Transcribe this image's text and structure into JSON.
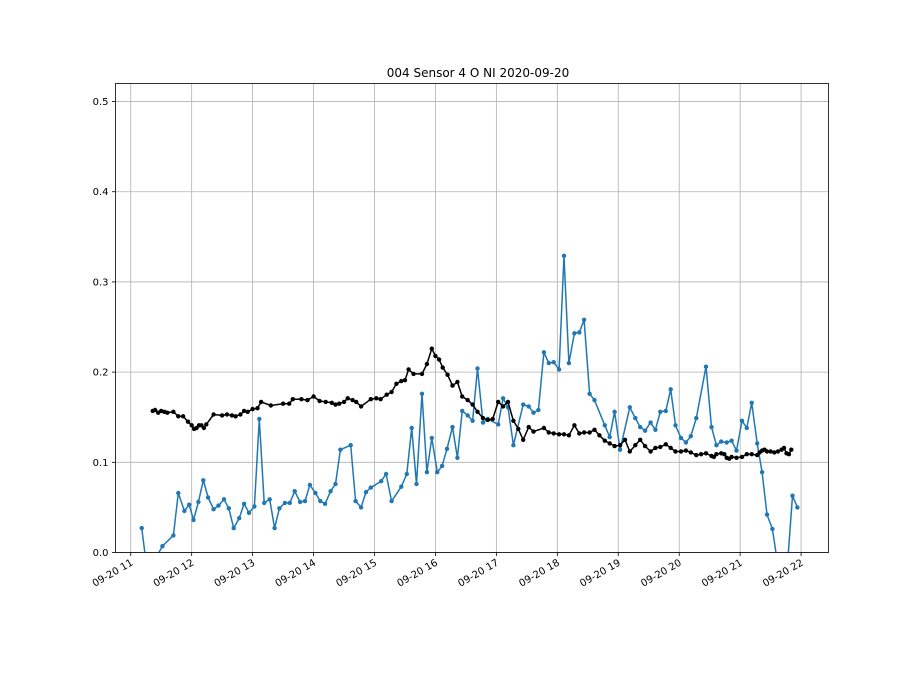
{
  "chart_data": {
    "type": "line",
    "title": "004 Sensor 4 O NI 2020-09-20",
    "xlabel": "",
    "ylabel": "",
    "x_unit": "hours (2020-09-20)",
    "xlim": [
      10.75,
      22.45
    ],
    "ylim": [
      0.0,
      0.52
    ],
    "x_tick_labels": [
      "09-20 11",
      "09-20 12",
      "09-20 13",
      "09-20 14",
      "09-20 15",
      "09-20 16",
      "09-20 17",
      "09-20 18",
      "09-20 19",
      "09-20 20",
      "09-20 21",
      "09-20 22"
    ],
    "x_tick_values": [
      11,
      12,
      13,
      14,
      15,
      16,
      17,
      18,
      19,
      20,
      21,
      22
    ],
    "y_tick_labels": [
      "0.0",
      "0.1",
      "0.2",
      "0.3",
      "0.4",
      "0.5"
    ],
    "y_tick_values": [
      0.0,
      0.1,
      0.2,
      0.3,
      0.4,
      0.5
    ],
    "grid": true,
    "series": [
      {
        "color": "#1f77b4",
        "points": [
          [
            11.18,
            0.027
          ],
          [
            11.25,
            -0.01
          ],
          [
            11.38,
            -0.01
          ],
          [
            11.52,
            0.007
          ],
          [
            11.7,
            0.019
          ],
          [
            11.78,
            0.066
          ],
          [
            11.88,
            0.046
          ],
          [
            11.96,
            0.053
          ],
          [
            12.03,
            0.036
          ],
          [
            12.11,
            0.056
          ],
          [
            12.19,
            0.08
          ],
          [
            12.27,
            0.061
          ],
          [
            12.36,
            0.048
          ],
          [
            12.44,
            0.052
          ],
          [
            12.53,
            0.059
          ],
          [
            12.61,
            0.049
          ],
          [
            12.69,
            0.027
          ],
          [
            12.78,
            0.038
          ],
          [
            12.86,
            0.054
          ],
          [
            12.94,
            0.044
          ],
          [
            13.03,
            0.051
          ],
          [
            13.11,
            0.148
          ],
          [
            13.19,
            0.055
          ],
          [
            13.28,
            0.059
          ],
          [
            13.36,
            0.027
          ],
          [
            13.44,
            0.049
          ],
          [
            13.53,
            0.055
          ],
          [
            13.61,
            0.055
          ],
          [
            13.69,
            0.068
          ],
          [
            13.78,
            0.056
          ],
          [
            13.86,
            0.057
          ],
          [
            13.94,
            0.075
          ],
          [
            14.03,
            0.066
          ],
          [
            14.11,
            0.057
          ],
          [
            14.19,
            0.054
          ],
          [
            14.28,
            0.068
          ],
          [
            14.36,
            0.076
          ],
          [
            14.44,
            0.114
          ],
          [
            14.61,
            0.119
          ],
          [
            14.69,
            0.057
          ],
          [
            14.78,
            0.05
          ],
          [
            14.86,
            0.067
          ],
          [
            14.94,
            0.072
          ],
          [
            15.11,
            0.079
          ],
          [
            15.19,
            0.087
          ],
          [
            15.28,
            0.057
          ],
          [
            15.44,
            0.073
          ],
          [
            15.53,
            0.087
          ],
          [
            15.61,
            0.138
          ],
          [
            15.69,
            0.076
          ],
          [
            15.78,
            0.176
          ],
          [
            15.86,
            0.089
          ],
          [
            15.94,
            0.127
          ],
          [
            16.03,
            0.089
          ],
          [
            16.11,
            0.096
          ],
          [
            16.19,
            0.115
          ],
          [
            16.28,
            0.139
          ],
          [
            16.36,
            0.105
          ],
          [
            16.44,
            0.157
          ],
          [
            16.53,
            0.152
          ],
          [
            16.61,
            0.146
          ],
          [
            16.69,
            0.204
          ],
          [
            16.78,
            0.144
          ],
          [
            16.86,
            0.148
          ],
          [
            17.03,
            0.142
          ],
          [
            17.11,
            0.171
          ],
          [
            17.19,
            0.161
          ],
          [
            17.28,
            0.119
          ],
          [
            17.44,
            0.164
          ],
          [
            17.53,
            0.162
          ],
          [
            17.61,
            0.155
          ],
          [
            17.69,
            0.158
          ],
          [
            17.78,
            0.222
          ],
          [
            17.86,
            0.21
          ],
          [
            17.94,
            0.211
          ],
          [
            18.03,
            0.203
          ],
          [
            18.11,
            0.329
          ],
          [
            18.19,
            0.21
          ],
          [
            18.28,
            0.243
          ],
          [
            18.36,
            0.244
          ],
          [
            18.44,
            0.258
          ],
          [
            18.53,
            0.176
          ],
          [
            18.61,
            0.169
          ],
          [
            18.78,
            0.141
          ],
          [
            18.86,
            0.128
          ],
          [
            18.94,
            0.156
          ],
          [
            19.03,
            0.114
          ],
          [
            19.19,
            0.161
          ],
          [
            19.28,
            0.149
          ],
          [
            19.36,
            0.139
          ],
          [
            19.44,
            0.135
          ],
          [
            19.53,
            0.144
          ],
          [
            19.61,
            0.136
          ],
          [
            19.69,
            0.156
          ],
          [
            19.78,
            0.157
          ],
          [
            19.86,
            0.181
          ],
          [
            19.94,
            0.141
          ],
          [
            20.03,
            0.127
          ],
          [
            20.11,
            0.122
          ],
          [
            20.19,
            0.129
          ],
          [
            20.28,
            0.149
          ],
          [
            20.44,
            0.206
          ],
          [
            20.53,
            0.139
          ],
          [
            20.61,
            0.119
          ],
          [
            20.69,
            0.123
          ],
          [
            20.78,
            0.122
          ],
          [
            20.86,
            0.124
          ],
          [
            20.94,
            0.113
          ],
          [
            21.03,
            0.146
          ],
          [
            21.11,
            0.138
          ],
          [
            21.19,
            0.166
          ],
          [
            21.28,
            0.121
          ],
          [
            21.36,
            0.089
          ],
          [
            21.44,
            0.042
          ],
          [
            21.53,
            0.026
          ],
          [
            21.61,
            -0.01
          ],
          [
            21.78,
            -0.01
          ],
          [
            21.86,
            0.063
          ],
          [
            21.94,
            0.05
          ]
        ]
      },
      {
        "color": "#000000",
        "points": [
          [
            11.36,
            0.157
          ],
          [
            11.4,
            0.158
          ],
          [
            11.45,
            0.155
          ],
          [
            11.5,
            0.157
          ],
          [
            11.55,
            0.156
          ],
          [
            11.6,
            0.155
          ],
          [
            11.7,
            0.156
          ],
          [
            11.78,
            0.151
          ],
          [
            11.86,
            0.151
          ],
          [
            11.94,
            0.145
          ],
          [
            12.0,
            0.141
          ],
          [
            12.04,
            0.137
          ],
          [
            12.08,
            0.138
          ],
          [
            12.12,
            0.141
          ],
          [
            12.16,
            0.141
          ],
          [
            12.2,
            0.138
          ],
          [
            12.24,
            0.142
          ],
          [
            12.36,
            0.153
          ],
          [
            12.5,
            0.152
          ],
          [
            12.58,
            0.153
          ],
          [
            12.66,
            0.152
          ],
          [
            12.72,
            0.151
          ],
          [
            12.8,
            0.153
          ],
          [
            12.86,
            0.157
          ],
          [
            12.92,
            0.156
          ],
          [
            13.0,
            0.159
          ],
          [
            13.08,
            0.16
          ],
          [
            13.14,
            0.167
          ],
          [
            13.3,
            0.163
          ],
          [
            13.5,
            0.165
          ],
          [
            13.6,
            0.165
          ],
          [
            13.66,
            0.17
          ],
          [
            13.8,
            0.17
          ],
          [
            13.9,
            0.169
          ],
          [
            14.0,
            0.173
          ],
          [
            14.1,
            0.168
          ],
          [
            14.2,
            0.167
          ],
          [
            14.3,
            0.166
          ],
          [
            14.36,
            0.164
          ],
          [
            14.42,
            0.165
          ],
          [
            14.5,
            0.167
          ],
          [
            14.56,
            0.171
          ],
          [
            14.64,
            0.169
          ],
          [
            14.7,
            0.167
          ],
          [
            14.78,
            0.162
          ],
          [
            14.94,
            0.17
          ],
          [
            15.03,
            0.171
          ],
          [
            15.1,
            0.17
          ],
          [
            15.2,
            0.175
          ],
          [
            15.28,
            0.178
          ],
          [
            15.36,
            0.187
          ],
          [
            15.44,
            0.19
          ],
          [
            15.5,
            0.191
          ],
          [
            15.56,
            0.203
          ],
          [
            15.64,
            0.198
          ],
          [
            15.78,
            0.198
          ],
          [
            15.86,
            0.209
          ],
          [
            15.94,
            0.226
          ],
          [
            16.0,
            0.218
          ],
          [
            16.06,
            0.214
          ],
          [
            16.12,
            0.205
          ],
          [
            16.2,
            0.197
          ],
          [
            16.28,
            0.185
          ],
          [
            16.36,
            0.189
          ],
          [
            16.44,
            0.173
          ],
          [
            16.53,
            0.169
          ],
          [
            16.61,
            0.164
          ],
          [
            16.69,
            0.156
          ],
          [
            16.78,
            0.149
          ],
          [
            16.86,
            0.147
          ],
          [
            16.94,
            0.148
          ],
          [
            17.03,
            0.167
          ],
          [
            17.11,
            0.162
          ],
          [
            17.19,
            0.167
          ],
          [
            17.28,
            0.146
          ],
          [
            17.36,
            0.137
          ],
          [
            17.44,
            0.125
          ],
          [
            17.53,
            0.139
          ],
          [
            17.61,
            0.134
          ],
          [
            17.78,
            0.138
          ],
          [
            17.86,
            0.133
          ],
          [
            17.94,
            0.132
          ],
          [
            18.03,
            0.131
          ],
          [
            18.11,
            0.131
          ],
          [
            18.19,
            0.13
          ],
          [
            18.28,
            0.141
          ],
          [
            18.36,
            0.132
          ],
          [
            18.44,
            0.133
          ],
          [
            18.53,
            0.133
          ],
          [
            18.61,
            0.136
          ],
          [
            18.69,
            0.13
          ],
          [
            18.78,
            0.124
          ],
          [
            18.86,
            0.121
          ],
          [
            18.94,
            0.118
          ],
          [
            19.03,
            0.119
          ],
          [
            19.11,
            0.125
          ],
          [
            19.19,
            0.112
          ],
          [
            19.28,
            0.119
          ],
          [
            19.36,
            0.125
          ],
          [
            19.44,
            0.118
          ],
          [
            19.53,
            0.112
          ],
          [
            19.61,
            0.116
          ],
          [
            19.69,
            0.117
          ],
          [
            19.78,
            0.12
          ],
          [
            19.86,
            0.116
          ],
          [
            19.94,
            0.112
          ],
          [
            20.03,
            0.112
          ],
          [
            20.11,
            0.113
          ],
          [
            20.19,
            0.111
          ],
          [
            20.28,
            0.108
          ],
          [
            20.36,
            0.109
          ],
          [
            20.44,
            0.11
          ],
          [
            20.53,
            0.107
          ],
          [
            20.57,
            0.106
          ],
          [
            20.61,
            0.109
          ],
          [
            20.69,
            0.11
          ],
          [
            20.74,
            0.109
          ],
          [
            20.78,
            0.105
          ],
          [
            20.82,
            0.104
          ],
          [
            20.86,
            0.106
          ],
          [
            20.94,
            0.105
          ],
          [
            21.03,
            0.106
          ],
          [
            21.11,
            0.109
          ],
          [
            21.19,
            0.109
          ],
          [
            21.28,
            0.108
          ],
          [
            21.32,
            0.111
          ],
          [
            21.36,
            0.113
          ],
          [
            21.4,
            0.114
          ],
          [
            21.44,
            0.112
          ],
          [
            21.5,
            0.112
          ],
          [
            21.56,
            0.111
          ],
          [
            21.62,
            0.112
          ],
          [
            21.68,
            0.114
          ],
          [
            21.72,
            0.116
          ],
          [
            21.76,
            0.11
          ],
          [
            21.8,
            0.109
          ],
          [
            21.84,
            0.114
          ]
        ]
      }
    ]
  }
}
